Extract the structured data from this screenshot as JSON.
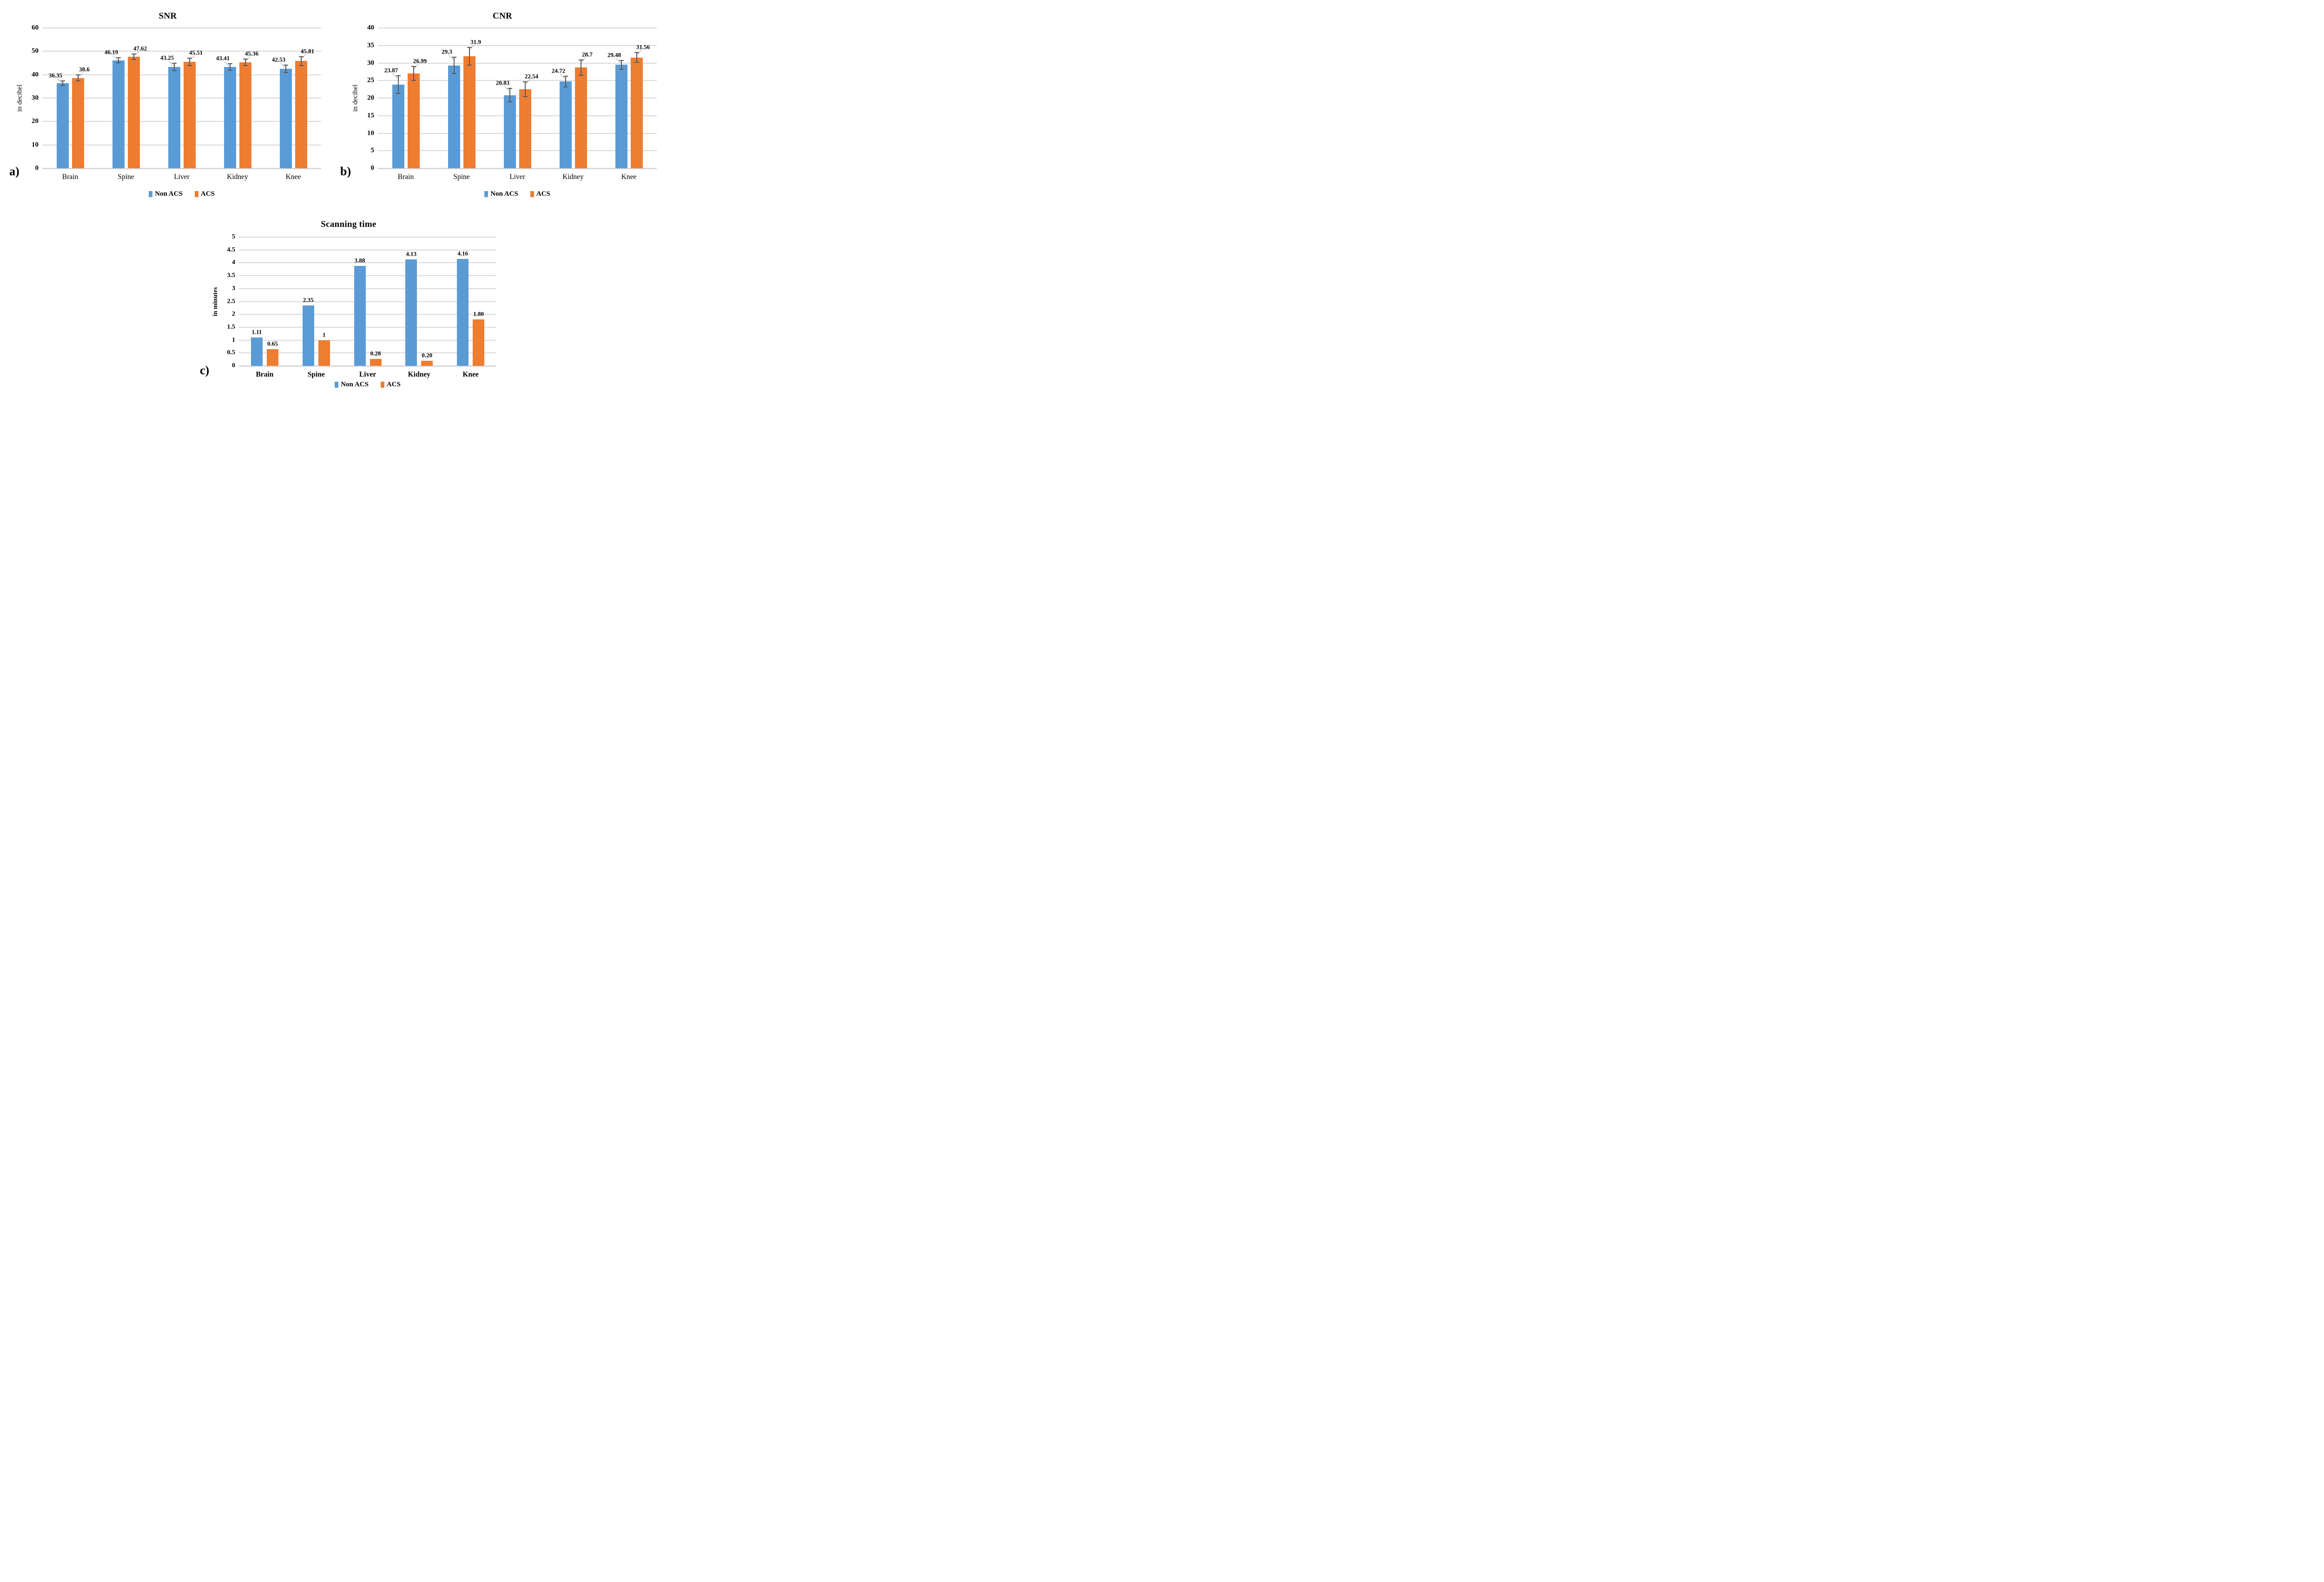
{
  "colors": {
    "non_acs": "#5B9BD5",
    "acs": "#ED7D31",
    "error_bar": "#595959",
    "gridline": "#D9D9D9",
    "leader_line": "#A6A6A6",
    "text": "#000000"
  },
  "legend": {
    "items": [
      {
        "label": "Non ACS",
        "color_key": "non_acs"
      },
      {
        "label": "ACS",
        "color_key": "acs"
      }
    ]
  },
  "chart_data": [
    {
      "type": "bar",
      "panel_label": "a)",
      "title": "SNR",
      "xlabel": "",
      "ylabel": "in decibel",
      "ylim": [
        0,
        60
      ],
      "ystep": 10,
      "yticks": [
        "0",
        "10",
        "20",
        "30",
        "40",
        "50",
        "60"
      ],
      "grid": true,
      "legend_position": "bottom",
      "error_bars": true,
      "categories": [
        "Brain",
        "Spine",
        "Liver",
        "Kidney",
        "Knee"
      ],
      "series": [
        {
          "name": "Non ACS",
          "color_key": "non_acs",
          "values": [
            36.35,
            46.19,
            43.25,
            43.41,
            42.53
          ],
          "labels": [
            "36.35",
            "46.19",
            "43.25",
            "43.41",
            "42.53"
          ],
          "errors": [
            1.0,
            1.1,
            1.6,
            1.4,
            1.5
          ]
        },
        {
          "name": "ACS",
          "color_key": "acs",
          "values": [
            38.6,
            47.62,
            45.51,
            45.36,
            45.81
          ],
          "labels": [
            "38.6",
            "47.62",
            "45.51",
            "45.36",
            "45.81"
          ],
          "errors": [
            1.3,
            1.2,
            1.5,
            1.4,
            1.8
          ]
        }
      ]
    },
    {
      "type": "bar",
      "panel_label": "b)",
      "title": "CNR",
      "xlabel": "",
      "ylabel": "in decibel",
      "ylim": [
        0,
        40
      ],
      "ystep": 5,
      "yticks": [
        "0",
        "5",
        "10",
        "15",
        "20",
        "25",
        "30",
        "35",
        "40"
      ],
      "grid": true,
      "legend_position": "bottom",
      "error_bars": true,
      "categories": [
        "Brain",
        "Spine",
        "Liver",
        "Kidney",
        "Knee"
      ],
      "series": [
        {
          "name": "Non ACS",
          "color_key": "non_acs",
          "values": [
            23.87,
            29.3,
            20.83,
            24.72,
            29.48
          ],
          "labels": [
            "23.87",
            "29.3",
            "20.83",
            "24.72",
            "29.48"
          ],
          "errors": [
            2.5,
            2.3,
            1.9,
            1.5,
            1.2
          ]
        },
        {
          "name": "ACS",
          "color_key": "acs",
          "values": [
            26.99,
            31.9,
            22.54,
            28.7,
            31.56
          ],
          "labels": [
            "26.99",
            "31.9",
            "22.54",
            "28.7",
            "31.56"
          ],
          "errors": [
            2.0,
            2.5,
            2.1,
            2.2,
            1.4
          ]
        }
      ]
    },
    {
      "type": "bar",
      "panel_label": "c)",
      "title": "Scanning time",
      "xlabel": "",
      "ylabel": "in minutes",
      "ylim": [
        0,
        5
      ],
      "ystep": 0.5,
      "yticks": [
        "0",
        "0.5",
        "1",
        "1.5",
        "2",
        "2.5",
        "3",
        "3.5",
        "4",
        "4.5",
        "5"
      ],
      "grid": true,
      "legend_position": "bottom",
      "error_bars": false,
      "categories": [
        "Brain",
        "Spine",
        "Liver",
        "Kidney",
        "Knee"
      ],
      "series": [
        {
          "name": "Non ACS",
          "color_key": "non_acs",
          "values": [
            1.11,
            2.35,
            3.88,
            4.13,
            4.16
          ],
          "labels": [
            "1.11",
            "2.35",
            "3.88",
            "4.13",
            "4.16"
          ],
          "errors": []
        },
        {
          "name": "ACS",
          "color_key": "acs",
          "values": [
            0.65,
            1,
            0.28,
            0.2,
            1.8
          ],
          "labels": [
            "0.65",
            "1",
            "0.28",
            "0.20",
            "1.80"
          ],
          "errors": []
        }
      ]
    }
  ]
}
